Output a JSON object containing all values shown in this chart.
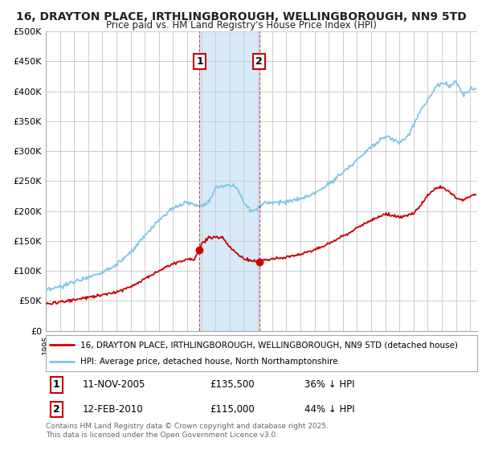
{
  "title": "16, DRAYTON PLACE, IRTHLINGBOROUGH, WELLINGBOROUGH, NN9 5TD",
  "subtitle": "Price paid vs. HM Land Registry's House Price Index (HPI)",
  "hpi_label": "HPI: Average price, detached house, North Northamptonshire",
  "price_label": "16, DRAYTON PLACE, IRTHLINGBOROUGH, WELLINGBOROUGH, NN9 5TD (detached house)",
  "hpi_color": "#7ec8e3",
  "price_color": "#cc0000",
  "marker1_date": "11-NOV-2005",
  "marker1_price": 135500,
  "marker1_pct": "36%",
  "marker2_date": "12-FEB-2010",
  "marker2_price": 115000,
  "marker2_pct": "44%",
  "footer": "Contains HM Land Registry data © Crown copyright and database right 2025.\nThis data is licensed under the Open Government Licence v3.0.",
  "ylim": [
    0,
    500000
  ],
  "yticks": [
    0,
    50000,
    100000,
    150000,
    200000,
    250000,
    300000,
    350000,
    400000,
    450000,
    500000
  ],
  "background_color": "#ffffff",
  "grid_color": "#cccccc",
  "shade_color": "#d6eaf8",
  "marker1_x": 2005.875,
  "marker2_x": 2010.083,
  "hpi_keypoints_x": [
    1995,
    1996,
    1997,
    1998,
    1999,
    2000,
    2001,
    2002,
    2003,
    2004,
    2005,
    2005.5,
    2006,
    2006.5,
    2007,
    2007.5,
    2008,
    2008.5,
    2009,
    2009.5,
    2010,
    2010.5,
    2011,
    2012,
    2013,
    2014,
    2015,
    2016,
    2017,
    2018,
    2019,
    2020,
    2020.5,
    2021,
    2021.5,
    2022,
    2022.5,
    2023,
    2023.5,
    2024,
    2024.5,
    2025.3
  ],
  "hpi_keypoints_y": [
    67000,
    73000,
    82000,
    90000,
    98000,
    110000,
    130000,
    158000,
    185000,
    205000,
    215000,
    210000,
    210000,
    215000,
    237000,
    242000,
    243000,
    240000,
    215000,
    200000,
    205000,
    215000,
    215000,
    215000,
    220000,
    230000,
    245000,
    265000,
    285000,
    308000,
    325000,
    315000,
    320000,
    345000,
    368000,
    385000,
    405000,
    415000,
    410000,
    415000,
    395000,
    405000
  ],
  "red_keypoints_x": [
    1995,
    1996,
    1997,
    1998,
    1999,
    2000,
    2001,
    2002,
    2003,
    2004,
    2005,
    2005.5,
    2005.875,
    2006,
    2006.5,
    2007,
    2007.5,
    2008,
    2008.5,
    2009,
    2009.5,
    2010.083,
    2010.5,
    2011,
    2012,
    2013,
    2014,
    2015,
    2016,
    2017,
    2018,
    2019,
    2020,
    2021,
    2022,
    2022.5,
    2023,
    2023.5,
    2024,
    2024.5,
    2025.3
  ],
  "red_keypoints_y": [
    45000,
    48000,
    52000,
    56000,
    60000,
    65000,
    74000,
    87000,
    100000,
    112000,
    120000,
    120000,
    135500,
    145000,
    155000,
    157000,
    155000,
    140000,
    130000,
    120000,
    118000,
    115000,
    118000,
    120000,
    123000,
    128000,
    135000,
    145000,
    158000,
    172000,
    185000,
    195000,
    190000,
    195000,
    225000,
    237000,
    240000,
    232000,
    222000,
    218000,
    228000
  ]
}
